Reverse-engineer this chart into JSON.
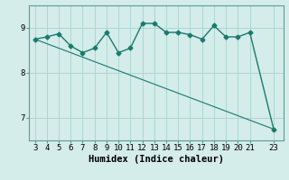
{
  "xlabel": "Humidex (Indice chaleur)",
  "x_values": [
    3,
    4,
    5,
    6,
    7,
    8,
    9,
    10,
    11,
    12,
    13,
    14,
    15,
    16,
    17,
    18,
    19,
    20,
    21,
    23
  ],
  "y_values": [
    8.75,
    8.8,
    8.87,
    8.6,
    8.45,
    8.55,
    8.9,
    8.45,
    8.55,
    9.1,
    9.1,
    8.9,
    8.9,
    8.85,
    8.75,
    9.05,
    8.8,
    8.8,
    8.9,
    6.75
  ],
  "trend_x": [
    3,
    23
  ],
  "trend_y": [
    8.75,
    6.75
  ],
  "line_color": "#1a7a6e",
  "bg_color": "#d4ecea",
  "grid_color": "#a8d4cf",
  "spine_color": "#5a9e96",
  "ylim": [
    6.5,
    9.5
  ],
  "yticks": [
    7,
    8,
    9
  ],
  "xlim": [
    2.5,
    23.8
  ],
  "xticks": [
    3,
    4,
    5,
    6,
    7,
    8,
    9,
    10,
    11,
    12,
    13,
    14,
    15,
    16,
    17,
    18,
    19,
    20,
    21,
    23
  ],
  "tick_fontsize": 6.5,
  "xlabel_fontsize": 7.5,
  "marker": "D",
  "marker_size": 2.5,
  "linewidth": 1.0,
  "trend_linewidth": 0.8
}
